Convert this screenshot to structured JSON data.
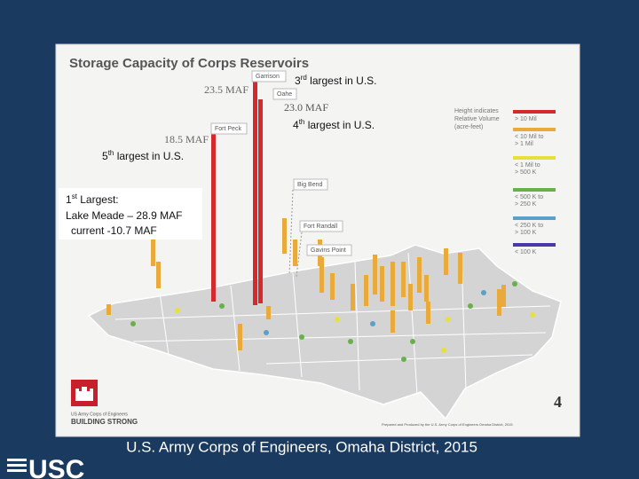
{
  "slide": {
    "title": "Storage Capacity of Corps Reservoirs",
    "callouts": {
      "third": {
        "number": "3",
        "suffix": "rd",
        "text": " largest in U.S."
      },
      "fourth": {
        "number": "4",
        "suffix": "th",
        "text": " largest in U.S."
      },
      "fifth": {
        "number": "5",
        "suffix": "th",
        "text": " largest in U.S."
      },
      "first": {
        "number": "1",
        "suffix": "st",
        "text": " Largest:",
        "line2": "Lake Meade – 28.9 MAF",
        "line3": "current -10.7 MAF"
      }
    },
    "labels": {
      "garrison": "Garrison",
      "garrison_volume": "23.5 MAF",
      "oahe": "Oahe",
      "oahe_volume": "23.0 MAF",
      "fort_peck": "Fort Peck",
      "fort_peck_volume": "18.5 MAF",
      "big_bend": "Big Bend",
      "fort_randall": "Fort Randall",
      "gavins_point": "Gavins Point"
    },
    "legend": {
      "heading": [
        "Height indicates",
        "Relative Volume",
        "(acre-feet)"
      ],
      "items": [
        {
          "label": [
            "> 10 Mil"
          ],
          "color": "#d42a2e"
        },
        {
          "label": [
            "< 10 Mil to",
            "> 1 Mil"
          ],
          "color": "#e8aa3a"
        },
        {
          "label": [
            "< 1 Mil to",
            "> 500 K"
          ],
          "color": "#e6e03a"
        },
        {
          "label": [
            "< 500 K to",
            "> 250 K"
          ],
          "color": "#6ab04a"
        },
        {
          "label": [
            "< 250 K to",
            "> 100 K"
          ],
          "color": "#5aa0c8"
        },
        {
          "label": [
            "< 100 K"
          ],
          "color": "#4a3aa8"
        }
      ]
    },
    "page_number": "4",
    "logo": [
      "US Army Corps of Engineers",
      "BUILDING STRONG"
    ],
    "credit": "Prepared and Produced by the U.S. Army Corps of Engineers Omaha District, 2015",
    "caption": "U.S. Army Corps of Engineers, Omaha District, 2015",
    "footer_logo": "USC"
  }
}
